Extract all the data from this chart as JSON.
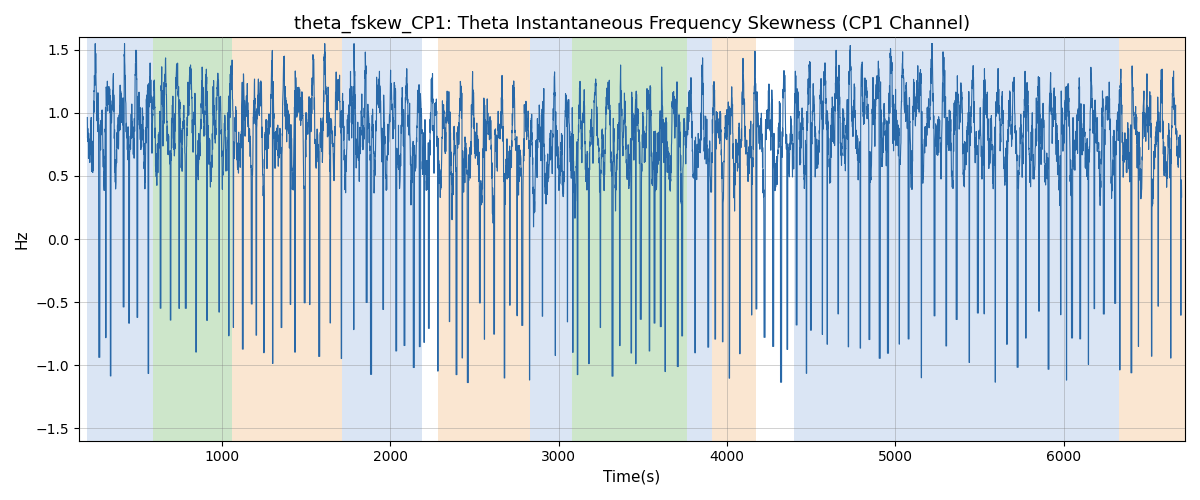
{
  "title": "theta_fskew_CP1: Theta Instantaneous Frequency Skewness (CP1 Channel)",
  "xlabel": "Time(s)",
  "ylabel": "Hz",
  "ylim": [
    -1.6,
    1.6
  ],
  "xlim": [
    150,
    6720
  ],
  "line_color": "#2868a8",
  "line_width": 0.8,
  "bg_bands": [
    {
      "xmin": 200,
      "xmax": 590,
      "color": "#aec6e8",
      "alpha": 0.45
    },
    {
      "xmin": 590,
      "xmax": 1060,
      "color": "#90c98a",
      "alpha": 0.45
    },
    {
      "xmin": 1060,
      "xmax": 1710,
      "color": "#f5c89a",
      "alpha": 0.45
    },
    {
      "xmin": 1710,
      "xmax": 2190,
      "color": "#aec6e8",
      "alpha": 0.45
    },
    {
      "xmin": 2280,
      "xmax": 2830,
      "color": "#f5c89a",
      "alpha": 0.45
    },
    {
      "xmin": 2830,
      "xmax": 3080,
      "color": "#aec6e8",
      "alpha": 0.45
    },
    {
      "xmin": 3080,
      "xmax": 3760,
      "color": "#90c98a",
      "alpha": 0.45
    },
    {
      "xmin": 3760,
      "xmax": 3910,
      "color": "#aec6e8",
      "alpha": 0.45
    },
    {
      "xmin": 3910,
      "xmax": 4170,
      "color": "#f5c89a",
      "alpha": 0.45
    },
    {
      "xmin": 4400,
      "xmax": 6330,
      "color": "#aec6e8",
      "alpha": 0.45
    },
    {
      "xmin": 6330,
      "xmax": 6720,
      "color": "#f5c89a",
      "alpha": 0.45
    }
  ],
  "t_start": 200,
  "t_end": 6700,
  "title_fontsize": 13,
  "label_fontsize": 11,
  "tick_fontsize": 10,
  "figsize": [
    12.0,
    5.0
  ],
  "dpi": 100
}
